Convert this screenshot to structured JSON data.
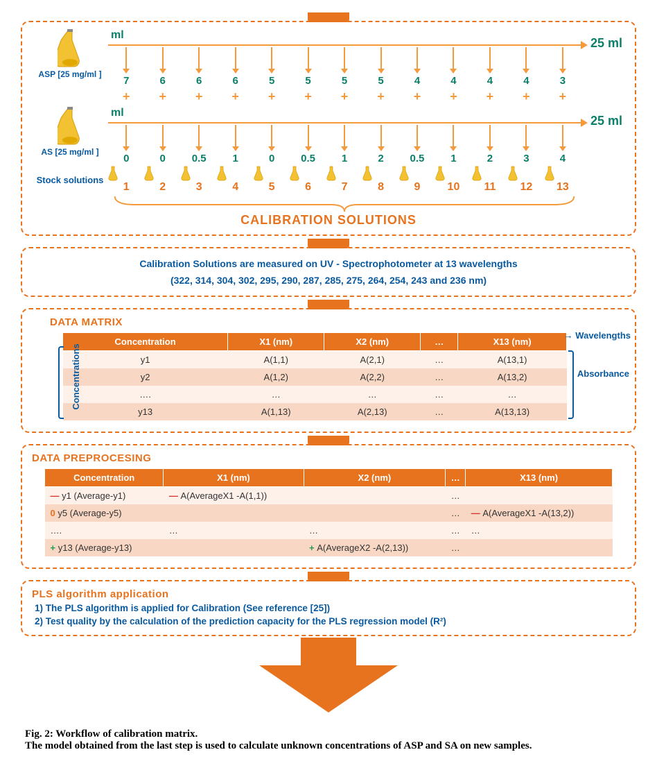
{
  "colors": {
    "orange": "#e8731e",
    "orange_light": "#f39a3c",
    "teal": "#0a806b",
    "blue": "#0a5aa0",
    "row_alt1": "#f8d7c4",
    "row_alt2": "#fdf1ea"
  },
  "top": {
    "ml_label": "ml",
    "endcap": "25 ml",
    "asp_label": "ASP [25 mg/ml ]",
    "as_label": "AS [25 mg/ml ]",
    "stock_label": "Stock solutions",
    "asp_values": [
      "7",
      "6",
      "6",
      "6",
      "5",
      "5",
      "5",
      "5",
      "4",
      "4",
      "4",
      "4",
      "3"
    ],
    "as_values": [
      "0",
      "0",
      "0.5",
      "1",
      "0",
      "0.5",
      "1",
      "2",
      "0.5",
      "1",
      "2",
      "3",
      "4"
    ],
    "numbers": [
      "1",
      "2",
      "3",
      "4",
      "5",
      "6",
      "7",
      "8",
      "9",
      "10",
      "11",
      "12",
      "13"
    ],
    "big_title": "CALIBRATION SOLUTIONS"
  },
  "uv": {
    "line1": "Calibration Solutions are measured on UV - Spectrophotometer  at 13 wavelengths",
    "line2": "(322, 314, 304, 302, 295, 290, 287, 285, 275, 264, 254, 243 and 236 nm)"
  },
  "matrix": {
    "title": "DATA MATRIX",
    "side_left": "Concentrations",
    "side_wave": "Wavelengths",
    "side_abs": "Absorbance",
    "headers": [
      "Concentration",
      "X1 (nm)",
      "X2 (nm)",
      "…",
      "X13 (nm)"
    ],
    "rows": [
      [
        "y1",
        "A(1,1)",
        "A(2,1)",
        "…",
        "A(13,1)"
      ],
      [
        "y2",
        "A(1,2)",
        "A(2,2)",
        "…",
        "A(13,2)"
      ],
      [
        "….",
        "…",
        "…",
        "…",
        "…"
      ],
      [
        "y13",
        "A(1,13)",
        "A(2,13)",
        "…",
        "A(13,13)"
      ]
    ]
  },
  "prep": {
    "title": "DATA PREPROCESING",
    "headers": [
      "Concentration",
      "X1 (nm)",
      "X2 (nm)",
      "…",
      "X13 (nm)"
    ],
    "rows": [
      {
        "sign": "neg",
        "c": "y1 (Average-y1)",
        "x1": "A(AverageX1 -A(1,1))",
        "x2": "",
        "dots": "…",
        "x13": ""
      },
      {
        "sign": "zero",
        "c": "y5 (Average-y5)",
        "x1": "",
        "x2": "",
        "dots": "…",
        "x13": "A(AverageX1 -A(13,2))",
        "x13sign": "neg"
      },
      {
        "sign": "",
        "c": "….",
        "x1": "…",
        "x2": "…",
        "dots": "…",
        "x13": "…"
      },
      {
        "sign": "plus",
        "c": "y13 (Average-y13)",
        "x1": "",
        "x2": "A(AverageX2 -A(2,13))",
        "x2sign": "plus",
        "dots": "…",
        "x13": ""
      }
    ]
  },
  "pls": {
    "title": "PLS algorithm application",
    "line1": "1) The PLS algorithm is applied for Calibration (See reference [25])",
    "line2": "2) Test quality by the calculation of the prediction capacity for the PLS regression model (R²)"
  },
  "caption": {
    "fig": "Fig. 2: Workflow of calibration matrix.",
    "sub": "The model obtained from the last step is used to calculate unknown concentrations of ASP and SA on new samples."
  }
}
